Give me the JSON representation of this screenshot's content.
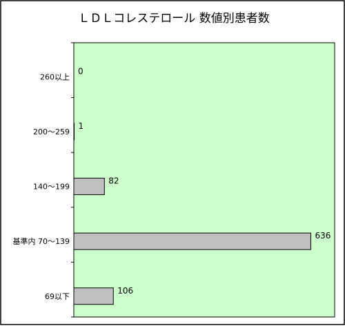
{
  "chart_data": {
    "type": "bar",
    "orientation": "horizontal",
    "title": "ＬＤＬコレステロール 数値別患者数",
    "categories": [
      "260以上",
      "200～259",
      "140～199",
      "基準内 70～139",
      "69以下"
    ],
    "values": [
      0,
      1,
      82,
      636,
      106
    ],
    "xlim": [
      0,
      700
    ],
    "grid": false,
    "legend": "none",
    "colors": {
      "plot_background": "#ccffcc",
      "bar_fill": "#c0c0c0",
      "bar_stroke": "#000000",
      "frame": "#000000"
    }
  }
}
